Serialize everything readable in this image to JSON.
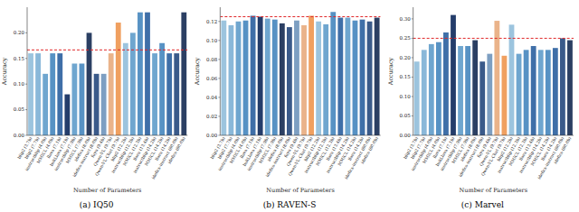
{
  "chart_data": [
    {
      "type": "bar",
      "title": "(a) IQ50",
      "x_label": "Number of Parameters",
      "y_label": "Accuracy",
      "categories": [
        "blip2 (3.7b)",
        "blip2 (7.7b)",
        "instructblip (4.0b)",
        "MMICL (4.0b)",
        "llava (7.1b)",
        "bakLlava (7.1b)",
        "instructblip (7.9b)",
        "MMICL (7.9b)",
        "idefics (8.0b)",
        "idefics-instruct (8.0b)",
        "fuyu (9.4b)",
        "Qwen-VL (9.7b)",
        "Qwen-VL-Chat (9.7b)",
        "blip2 (12.2b)",
        "instructblip (12.3b)",
        "MMICL (12.3b)",
        "llava (13.4b)",
        "instructblip (14.2b)",
        "MMICL (14.2b)",
        "llava (14.2b)",
        "idefics-instruct (80.0b)",
        "idefics (80.0b)"
      ],
      "values": [
        0.16,
        0.16,
        0.12,
        0.16,
        0.16,
        0.08,
        0.14,
        0.14,
        0.2,
        0.12,
        0.12,
        0.16,
        0.22,
        0.18,
        0.2,
        0.24,
        0.24,
        0.16,
        0.18,
        0.16,
        0.16,
        0.24
      ],
      "colors": [
        "#9cc4de",
        "#8ab8d9",
        "#6fa6cf",
        "#5792c4",
        "#3f6fa8",
        "#243d6b",
        "#6fa6cf",
        "#5792c4",
        "#2b3f63",
        "#3a5a8a",
        "#7d9fc2",
        "#eab38a",
        "#f0a060",
        "#9cc4de",
        "#6fa6cf",
        "#5792c4",
        "#3f6fa8",
        "#6fa6cf",
        "#5792c4",
        "#3f6fa8",
        "#3a5a8a",
        "#2b3f63"
      ],
      "ylim": [
        0,
        0.25
      ],
      "yticks": [
        {
          "value": 0,
          "label": "0.00"
        },
        {
          "value": 0.05,
          "label": "0.05"
        },
        {
          "value": 0.1,
          "label": "0.10"
        },
        {
          "value": 0.15,
          "label": "0.15"
        },
        {
          "value": 0.2,
          "label": "0.20"
        }
      ],
      "reference_line": 0.1667
    },
    {
      "type": "bar",
      "title": "(b) RAVEN-S",
      "x_label": "Number of Parameters",
      "y_label": "Accuracy",
      "categories": [
        "blip2 (3.7b)",
        "blip2 (7.7b)",
        "instructblip (4.0b)",
        "MMICL (4.0b)",
        "llava (7.1b)",
        "bakLlava (7.1b)",
        "instructblip (7.9b)",
        "MMICL (7.9b)",
        "idefics (8.0b)",
        "idefics-instruct (8.0b)",
        "fuyu (9.4b)",
        "Qwen-VL (9.7b)",
        "Qwen-VL-Chat (9.7b)",
        "blip2 (12.2b)",
        "instructblip (12.3b)",
        "MMICL (12.3b)",
        "llava (13.4b)",
        "instructblip (14.2b)",
        "MMICL (14.2b)",
        "llava (14.2b)",
        "idefics-instruct (80.0b)",
        "idefics (80.0b)"
      ],
      "values": [
        0.121,
        0.116,
        0.12,
        0.121,
        0.126,
        0.125,
        0.123,
        0.122,
        0.118,
        0.114,
        0.121,
        0.116,
        0.126,
        0.12,
        0.117,
        0.13,
        0.124,
        0.124,
        0.121,
        0.122,
        0.12,
        0.124
      ],
      "colors": [
        "#9cc4de",
        "#8ab8d9",
        "#6fa6cf",
        "#5792c4",
        "#3f6fa8",
        "#243d6b",
        "#6fa6cf",
        "#5792c4",
        "#2b3f63",
        "#3a5a8a",
        "#7d9fc2",
        "#eab38a",
        "#f0a060",
        "#9cc4de",
        "#6fa6cf",
        "#5792c4",
        "#3f6fa8",
        "#6fa6cf",
        "#5792c4",
        "#3f6fa8",
        "#3a5a8a",
        "#2b3f63"
      ],
      "ylim": [
        0,
        0.135
      ],
      "yticks": [
        {
          "value": 0,
          "label": "0.00"
        },
        {
          "value": 0.02,
          "label": "0.02"
        },
        {
          "value": 0.04,
          "label": "0.04"
        },
        {
          "value": 0.06,
          "label": "0.06"
        },
        {
          "value": 0.08,
          "label": "0.08"
        },
        {
          "value": 0.1,
          "label": "0.10"
        },
        {
          "value": 0.12,
          "label": "0.12"
        }
      ],
      "reference_line": 0.125
    },
    {
      "type": "bar",
      "title": "(c) Marvel",
      "x_label": "Number of Parameters",
      "y_label": "Accuracy",
      "categories": [
        "blip2 (3.7b)",
        "blip2 (7.7b)",
        "instructblip (4.0b)",
        "MMICL (4.0b)",
        "llava (7.1b)",
        "bakLlava (7.1b)",
        "instructblip (7.9b)",
        "MMICL (7.9b)",
        "idefics (8.0b)",
        "idefics-instruct (8.0b)",
        "fuyu (9.4b)",
        "Qwen-VL (9.7b)",
        "Qwen-VL-Chat (9.7b)",
        "blip2 (12.2b)",
        "instructblip (12.3b)",
        "MMICL (12.3b)",
        "llava (13.4b)",
        "instructblip (14.2b)",
        "MMICL (14.2b)",
        "llava (14.2b)",
        "idefics-instruct (80.0b)",
        "idefics (80.0b)"
      ],
      "values": [
        0.19,
        0.22,
        0.235,
        0.24,
        0.265,
        0.31,
        0.23,
        0.23,
        0.245,
        0.19,
        0.21,
        0.295,
        0.205,
        0.285,
        0.21,
        0.22,
        0.23,
        0.22,
        0.22,
        0.225,
        0.25,
        0.245
      ],
      "colors": [
        "#9cc4de",
        "#8ab8d9",
        "#6fa6cf",
        "#5792c4",
        "#3f6fa8",
        "#243d6b",
        "#6fa6cf",
        "#5792c4",
        "#2b3f63",
        "#3a5a8a",
        "#7d9fc2",
        "#eab38a",
        "#f0a060",
        "#9cc4de",
        "#6fa6cf",
        "#5792c4",
        "#3f6fa8",
        "#6fa6cf",
        "#5792c4",
        "#3f6fa8",
        "#3a5a8a",
        "#2b3f63"
      ],
      "ylim": [
        0,
        0.33
      ],
      "yticks": [
        {
          "value": 0,
          "label": "0.00"
        },
        {
          "value": 0.05,
          "label": "0.05"
        },
        {
          "value": 0.1,
          "label": "0.10"
        },
        {
          "value": 0.15,
          "label": "0.15"
        },
        {
          "value": 0.2,
          "label": "0.20"
        },
        {
          "value": 0.25,
          "label": "0.25"
        },
        {
          "value": 0.3,
          "label": "0.30"
        }
      ],
      "reference_line": 0.25
    }
  ]
}
